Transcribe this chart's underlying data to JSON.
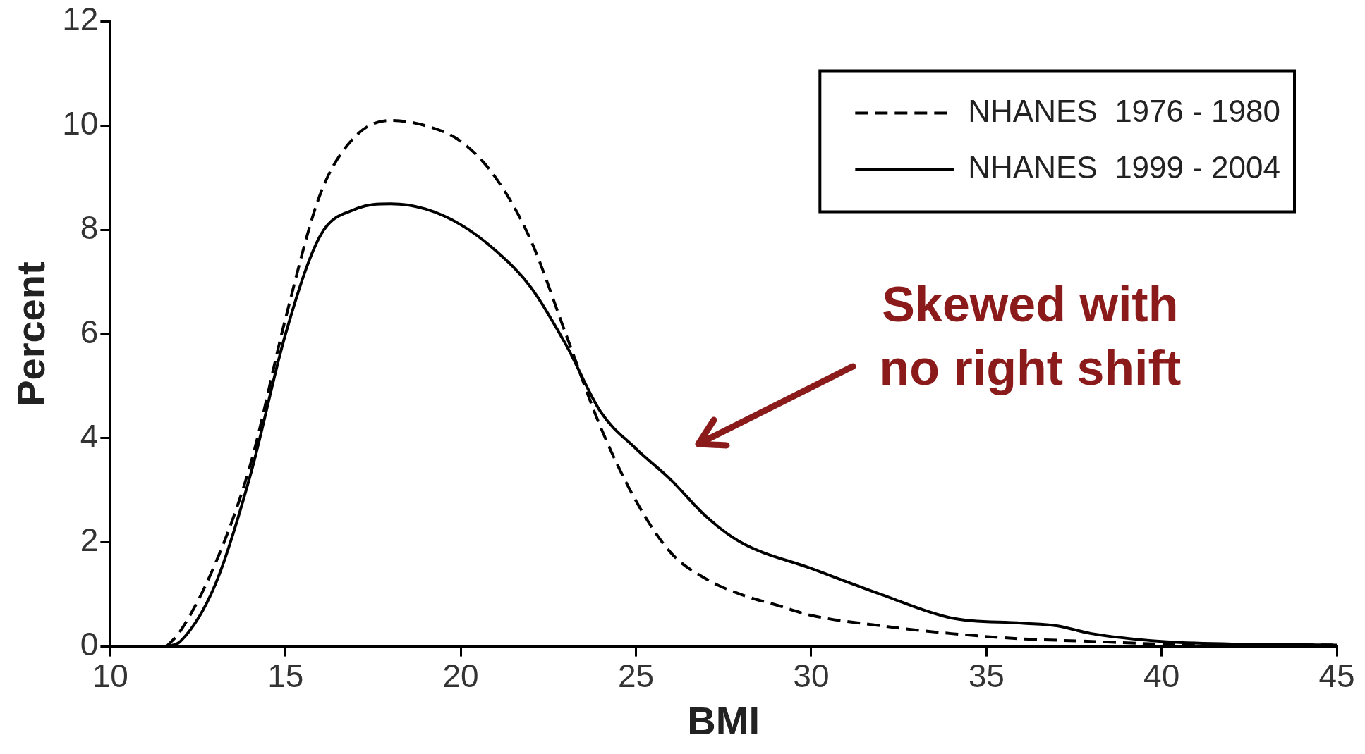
{
  "chart_data": {
    "type": "line",
    "xlabel": "BMI",
    "ylabel": "Percent",
    "xlim": [
      10,
      45
    ],
    "xticks": [
      10,
      15,
      20,
      25,
      30,
      35,
      40,
      45
    ],
    "ylim": [
      0,
      12
    ],
    "yticks": [
      0,
      2,
      4,
      6,
      8,
      10,
      12
    ],
    "grid": false,
    "legend": "top right",
    "marker": "none",
    "series": [
      {
        "name": "NHANES  1976 - 1980",
        "color": "#000000",
        "line_style": "dashed",
        "x": [
          11.6,
          12,
          13,
          14,
          15,
          16,
          17,
          18,
          19,
          20,
          21,
          22,
          23,
          24,
          25,
          26,
          27,
          28,
          29,
          30,
          32,
          34,
          36,
          38,
          40,
          45
        ],
        "values": [
          0,
          0.3,
          1.6,
          3.5,
          6.3,
          8.7,
          9.8,
          10.1,
          10,
          9.7,
          9,
          7.8,
          6,
          4.2,
          2.8,
          1.8,
          1.3,
          1,
          0.8,
          0.6,
          0.4,
          0.25,
          0.15,
          0.1,
          0.05,
          0.03
        ]
      },
      {
        "name": "NHANES  1999 - 2004",
        "color": "#000000",
        "line_style": "solid",
        "x": [
          11.6,
          12,
          13,
          14,
          15,
          16,
          17,
          18,
          19,
          20,
          21,
          22,
          23,
          24,
          25,
          26,
          27,
          28,
          30,
          32,
          34,
          36,
          37,
          38,
          40,
          42,
          45
        ],
        "values": [
          0,
          0.1,
          1.2,
          3.3,
          6,
          7.9,
          8.4,
          8.5,
          8.4,
          8.1,
          7.6,
          6.9,
          5.8,
          4.5,
          3.8,
          3.2,
          2.5,
          2,
          1.5,
          1,
          0.55,
          0.45,
          0.4,
          0.25,
          0.1,
          0.05,
          0.03
        ]
      }
    ],
    "annotations": [
      "Skewed with\nno right shift"
    ]
  }
}
